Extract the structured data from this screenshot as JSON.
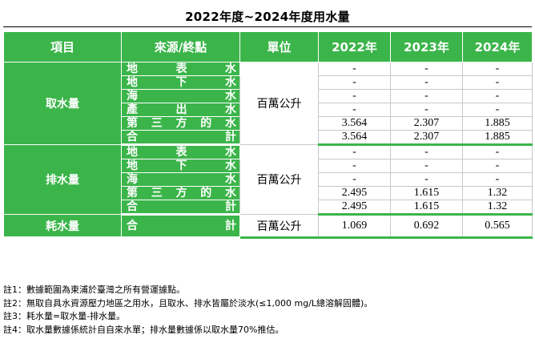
{
  "title": "2022年度~2024年度用水量",
  "headers": [
    "項目",
    "來源/終點",
    "單位",
    "2022年",
    "2023年",
    "2024年"
  ],
  "groups": [
    {
      "name": "取水量",
      "unit": "百萬公升",
      "rows": [
        {
          "label": "地表水",
          "values": [
            "-",
            "-",
            "-"
          ]
        },
        {
          "label": "地下水",
          "values": [
            "-",
            "-",
            "-"
          ]
        },
        {
          "label": "海水",
          "values": [
            "-",
            "-",
            "-"
          ]
        },
        {
          "label": "產出水",
          "values": [
            "-",
            "-",
            "-"
          ]
        },
        {
          "label": "第三方的水",
          "values": [
            "3.564",
            "2.307",
            "1.885"
          ]
        },
        {
          "label": "合計",
          "values": [
            "3.564",
            "2.307",
            "1.885"
          ]
        }
      ]
    },
    {
      "name": "排水量",
      "unit": "百萬公升",
      "rows": [
        {
          "label": "地表水",
          "values": [
            "-",
            "-",
            "-"
          ]
        },
        {
          "label": "地下水",
          "values": [
            "-",
            "-",
            "-"
          ]
        },
        {
          "label": "海水",
          "values": [
            "-",
            "-",
            "-"
          ]
        },
        {
          "label": "第三方的水",
          "values": [
            "2.495",
            "1.615",
            "1.32"
          ]
        },
        {
          "label": "合計",
          "values": [
            "2.495",
            "1.615",
            "1.32"
          ]
        }
      ]
    },
    {
      "name": "耗水量",
      "unit": "百萬公升",
      "rows": [
        {
          "label": "合計",
          "values": [
            "1.069",
            "0.692",
            "0.565"
          ]
        }
      ]
    }
  ],
  "notes": [
    "註1：數據範圍為東浦於臺灣之所有營運據點。",
    "註2：無取自具水資源壓力地區之用水，且取水、排水皆屬於淡水(≤1,000 mg/L總溶解固體)。",
    "註3：耗水量=取水量-排水量。",
    "註4：取水量數據係統計自自來水單；排水量數據係以取水量70%推估。"
  ]
}
